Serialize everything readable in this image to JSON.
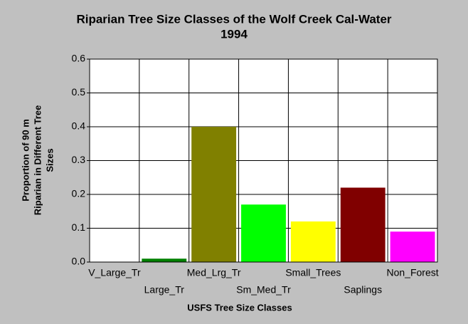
{
  "chart_data": {
    "type": "bar",
    "title": [
      "Riparian Tree Size Classes of the Wolf Creek Cal-Water",
      "1994"
    ],
    "x_label": "USFS Tree Size Classes",
    "y_label": [
      "Proportion of 90 m",
      "Riparian in Different Tree",
      "Sizes"
    ],
    "categories": [
      "V_Large_Tr",
      "Large_Tr",
      "Med_Lrg_Tr",
      "Sm_Med_Tr",
      "Small_Trees",
      "Saplings",
      "Non_Forest"
    ],
    "values": [
      0,
      0.01,
      0.4,
      0.17,
      0.12,
      0.22,
      0.09
    ],
    "colors": [
      "#000000",
      "#008000",
      "#808000",
      "#00ff00",
      "#ffff00",
      "#800000",
      "#ff00ff"
    ],
    "ylim": [
      0,
      0.6
    ],
    "yticks": [
      {
        "value": 0,
        "label": "0.0"
      },
      0.1,
      0.2,
      0.3,
      0.4,
      0.5,
      0.6
    ],
    "grid": true
  }
}
